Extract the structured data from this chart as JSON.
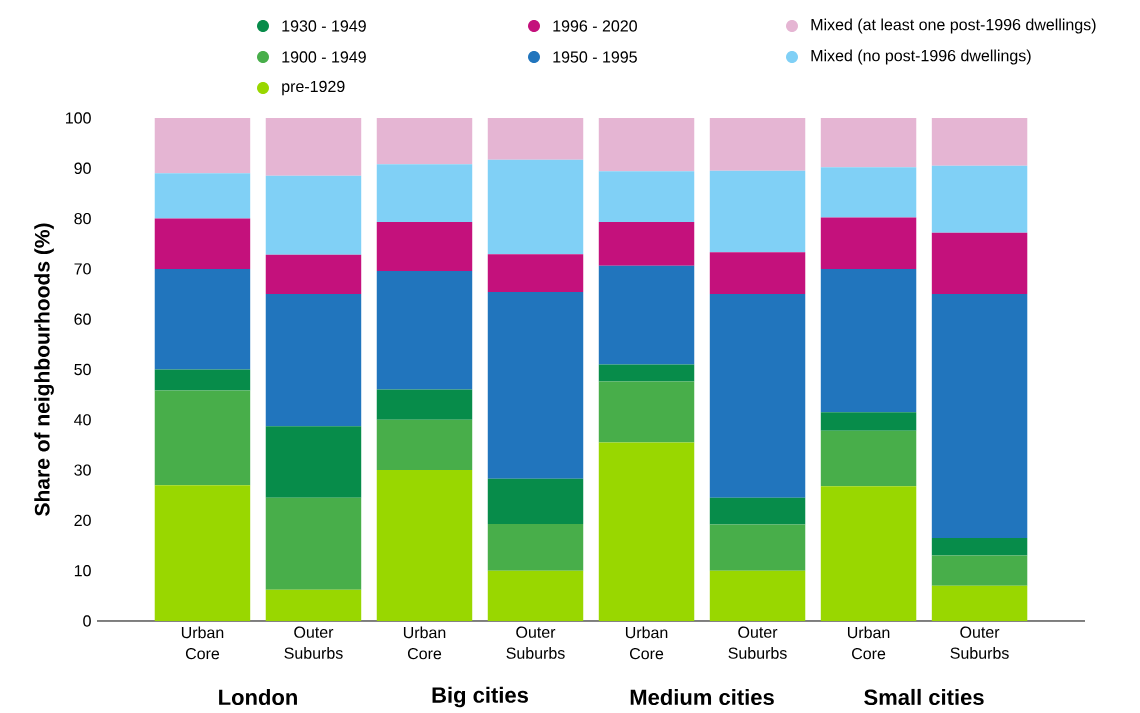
{
  "chart_data": {
    "type": "bar",
    "stacked": true,
    "ylabel": "Share of neighbourhoods (%)",
    "categories": [
      "Urban Core",
      "Outer Suburbs",
      "Urban Core",
      "Outer Suburbs",
      "Urban Core",
      "Outer Suburbs",
      "Urban Core",
      "Outer Suburbs"
    ],
    "annotations": [
      "London",
      "Big cities",
      "Medium cities",
      "Small cities"
    ],
    "ylim": [
      0,
      100
    ],
    "yticks": [
      0,
      10,
      20,
      30,
      40,
      50,
      60,
      70,
      80,
      90,
      100
    ],
    "legend": "top",
    "series": [
      {
        "name": "pre-1929",
        "color": "#99d700",
        "values": [
          27,
          6.2,
          30,
          10,
          35.5,
          10,
          26.8,
          7
        ]
      },
      {
        "name": "1900 - 1949",
        "color": "#48ae4a",
        "values": [
          18.8,
          18.3,
          10,
          9.3,
          12.1,
          9.2,
          11,
          6
        ]
      },
      {
        "name": "1930 - 1949",
        "color": "#078c4a",
        "values": [
          4.2,
          14.2,
          6,
          9,
          3.4,
          5.3,
          3.7,
          3.5
        ]
      },
      {
        "name": "1950 - 1995",
        "color": "#2175bd",
        "values": [
          20,
          26.3,
          23.6,
          37.1,
          19.6,
          40.5,
          28.5,
          48.5
        ]
      },
      {
        "name": "1996 - 2020",
        "color": "#c4117c",
        "values": [
          10,
          7.8,
          9.7,
          7.5,
          8.7,
          8.3,
          10.2,
          12.2
        ]
      },
      {
        "name": "Mixed (no post-1996 dwellings)",
        "color": "#80d0f6",
        "values": [
          9,
          15.7,
          11.5,
          18.8,
          10.1,
          16.2,
          10,
          13.3
        ]
      },
      {
        "name": "Mixed (at least one post-1996 dwellings)",
        "color": "#e5b5d3",
        "values": [
          11,
          11.5,
          9.2,
          8.3,
          10.6,
          10.5,
          9.8,
          9.5
        ]
      }
    ]
  }
}
